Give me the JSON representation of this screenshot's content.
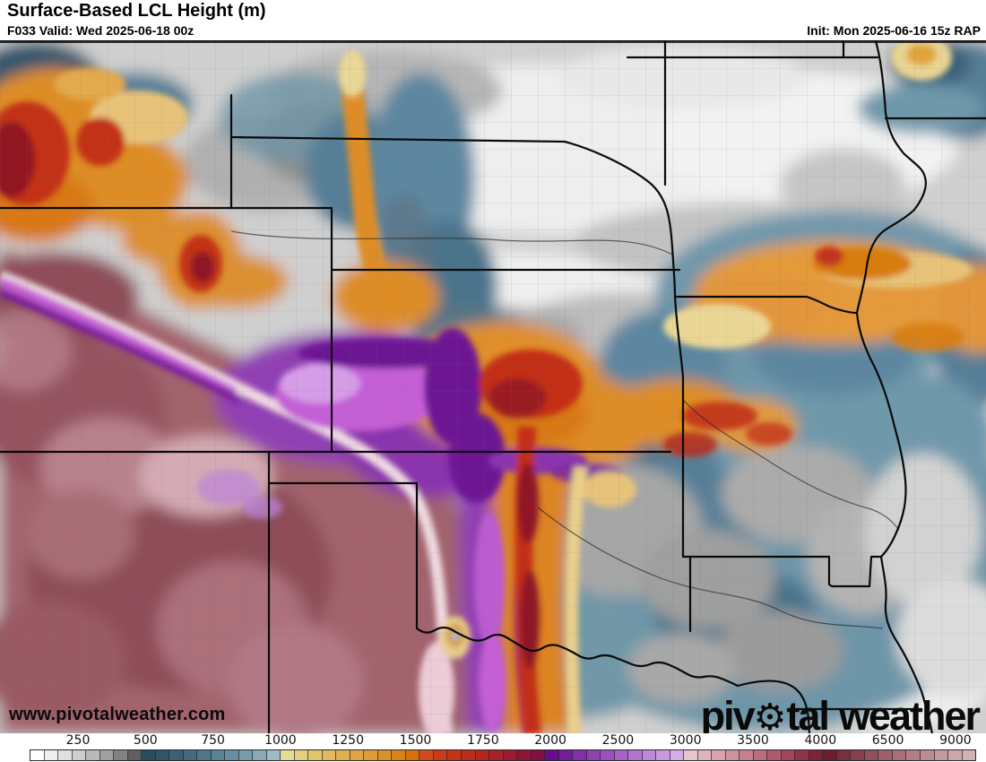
{
  "header": {
    "title": "Surface-Based LCL Height (m)",
    "subtitle": "F033 Valid: Wed 2025-06-18 00z",
    "init": "Init: Mon 2025-06-16 15z RAP"
  },
  "branding": {
    "watermark": "www.pivotalweather.com",
    "logo": {
      "part1": "piv",
      "gear_glyph": "⚙",
      "part2": "tal",
      "part3": "weather"
    }
  },
  "colorbar": {
    "ticks": [
      "250",
      "500",
      "750",
      "1000",
      "1250",
      "1500",
      "1750",
      "2000",
      "2500",
      "3000",
      "3500",
      "4000",
      "6500",
      "9000"
    ],
    "cells": [
      "#ffffff",
      "#efefef",
      "#e0e0e0",
      "#cecece",
      "#b9b9b9",
      "#a0a0a0",
      "#828282",
      "#5f5f5f",
      "#2c4a60",
      "#34546a",
      "#3c5f75",
      "#456a80",
      "#4f768b",
      "#5a8296",
      "#678ea0",
      "#769bab",
      "#88a9b7",
      "#9dbcc7",
      "#e7dc96",
      "#e4cf7e",
      "#e2c46b",
      "#e0b95c",
      "#dfaf4f",
      "#dea643",
      "#dc9c38",
      "#da902b",
      "#d8821a",
      "#d57106",
      "#d14b21",
      "#cb3b1b",
      "#c43218",
      "#bc2b19",
      "#b3271e",
      "#a92125",
      "#9d1b2e",
      "#8f1537",
      "#801040",
      "#670d8d",
      "#741f9a",
      "#8130a7",
      "#8e41b2",
      "#9a51bc",
      "#a663c5",
      "#b274ce",
      "#be86d7",
      "#ca98e0",
      "#d6abe8",
      "#e7c6ce",
      "#dfb5bf",
      "#d7a3b0",
      "#cf92a0",
      "#c68090",
      "#bb6d80",
      "#ae596e",
      "#a0455c",
      "#90324a",
      "#7e233a",
      "#6e1c30",
      "#773040",
      "#84404e",
      "#91505d",
      "#9d606b",
      "#a86f79",
      "#b27e86",
      "#bb8c93",
      "#c49aa0",
      "#cca7ac",
      "#d3b3b7"
    ]
  },
  "map": {
    "palette": {
      "low_grey": "#cfcfcf",
      "teal_500_1000": "#5d87a0",
      "yellow_1000": "#e7dc96",
      "orange_1250": "#de8d26",
      "red_1500": "#c22e16",
      "dark_red_2000": "#8f1626",
      "purple_2250": "#9140b4",
      "magenta_2500": "#c45ed6",
      "pink_3000": "#e7c6ce",
      "maroon_4000": "#a2646d",
      "border_color": "#0a0a0a"
    }
  }
}
